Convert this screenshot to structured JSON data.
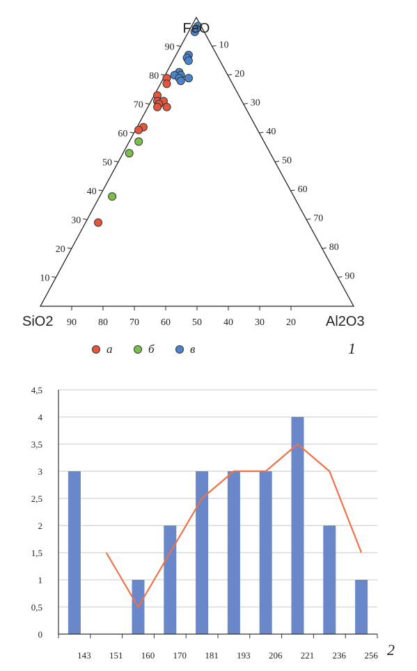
{
  "chart_data": [
    {
      "type": "scatter",
      "subtype": "ternary",
      "panel_label": "1",
      "vertices": {
        "top": "FeO",
        "left": "SiO2",
        "right": "Al2O3"
      },
      "axes": {
        "FeO": {
          "ticks": [
            "10",
            "20",
            "30",
            "40",
            "50",
            "60",
            "70",
            "80",
            "90"
          ]
        },
        "Al2O3": {
          "ticks": [
            "10",
            "20",
            "30",
            "40",
            "50",
            "60",
            "70",
            "80",
            "90"
          ]
        },
        "SiO2": {
          "ticks": [
            "90",
            "80",
            "70",
            "60",
            "50",
            "40",
            "30",
            "20"
          ]
        }
      },
      "legend": {
        "placement": "bottom",
        "items": [
          {
            "label": "а",
            "color": "#e8553a"
          },
          {
            "label": "б",
            "color": "#7cc04a"
          },
          {
            "label": "в",
            "color": "#4a84cf"
          }
        ]
      },
      "series": [
        {
          "name": "а",
          "color": "#e8553a",
          "points": [
            {
              "FeO": 79,
              "SiO2": 20,
              "Al2O3": 1
            },
            {
              "FeO": 77,
              "SiO2": 21,
              "Al2O3": 2
            },
            {
              "FeO": 73,
              "SiO2": 26,
              "Al2O3": 1
            },
            {
              "FeO": 71,
              "SiO2": 27,
              "Al2O3": 2
            },
            {
              "FeO": 71,
              "SiO2": 25,
              "Al2O3": 4
            },
            {
              "FeO": 70,
              "SiO2": 27,
              "Al2O3": 3
            },
            {
              "FeO": 69,
              "SiO2": 28,
              "Al2O3": 3
            },
            {
              "FeO": 69,
              "SiO2": 25,
              "Al2O3": 6
            },
            {
              "FeO": 62,
              "SiO2": 36,
              "Al2O3": 2
            },
            {
              "FeO": 61,
              "SiO2": 38,
              "Al2O3": 1
            },
            {
              "FeO": 29,
              "SiO2": 67,
              "Al2O3": 4
            }
          ]
        },
        {
          "name": "б",
          "color": "#7cc04a",
          "points": [
            {
              "FeO": 57,
              "SiO2": 40,
              "Al2O3": 3
            },
            {
              "FeO": 53,
              "SiO2": 45,
              "Al2O3": 2
            },
            {
              "FeO": 38,
              "SiO2": 58,
              "Al2O3": 4
            }
          ]
        },
        {
          "name": "в",
          "color": "#4a84cf",
          "points": [
            {
              "FeO": 97,
              "SiO2": 1,
              "Al2O3": 2
            },
            {
              "FeO": 96,
              "SiO2": 2,
              "Al2O3": 2
            },
            {
              "FeO": 95,
              "SiO2": 3,
              "Al2O3": 2
            },
            {
              "FeO": 87,
              "SiO2": 9,
              "Al2O3": 4
            },
            {
              "FeO": 86,
              "SiO2": 10,
              "Al2O3": 4
            },
            {
              "FeO": 85,
              "SiO2": 10,
              "Al2O3": 5
            },
            {
              "FeO": 81,
              "SiO2": 15,
              "Al2O3": 4
            },
            {
              "FeO": 80,
              "SiO2": 15,
              "Al2O3": 5
            },
            {
              "FeO": 80,
              "SiO2": 17,
              "Al2O3": 3
            },
            {
              "FeO": 79,
              "SiO2": 16,
              "Al2O3": 5
            },
            {
              "FeO": 79,
              "SiO2": 13,
              "Al2O3": 8
            },
            {
              "FeO": 78,
              "SiO2": 16,
              "Al2O3": 6
            }
          ]
        }
      ]
    },
    {
      "type": "bar",
      "panel_label": "2",
      "categories": [
        "143",
        "151",
        "160",
        "170",
        "181",
        "193",
        "206",
        "221",
        "236",
        "256"
      ],
      "ylim": [
        0,
        4.5
      ],
      "yticks": [
        "0",
        "0,5",
        "1",
        "1,5",
        "2",
        "2,5",
        "3",
        "3,5",
        "4",
        "4,5"
      ],
      "grid": true,
      "series": [
        {
          "kind": "bar",
          "color": "#6a87c9",
          "values": [
            3,
            0,
            1,
            2,
            3,
            3,
            3,
            4,
            2,
            1
          ]
        },
        {
          "kind": "line",
          "color": "#ee7148",
          "values": [
            null,
            1.5,
            0.5,
            1.5,
            2.5,
            3,
            3,
            3.5,
            3,
            1.5
          ]
        }
      ]
    }
  ]
}
